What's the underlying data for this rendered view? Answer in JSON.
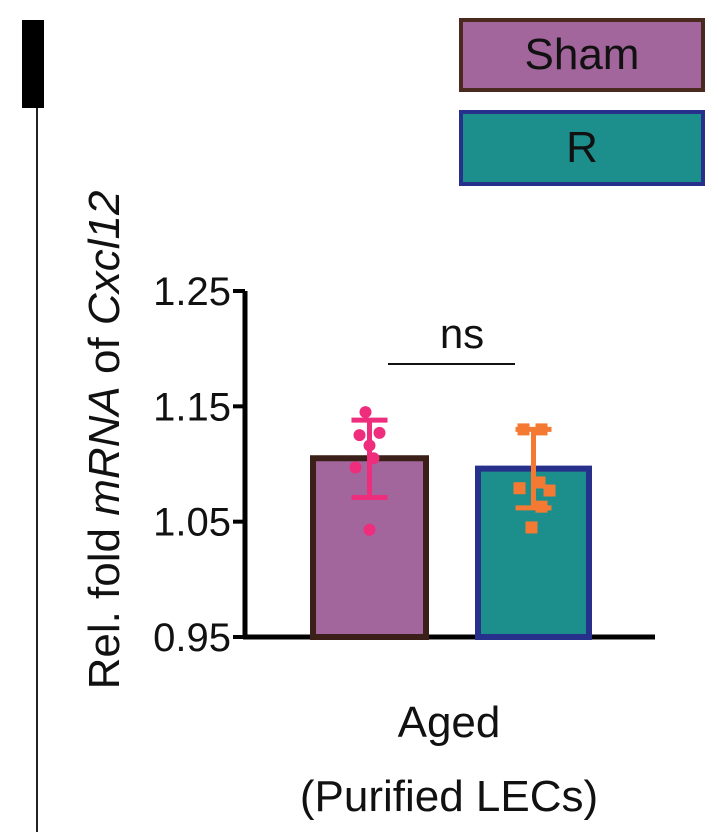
{
  "panel_label": "",
  "legend": [
    {
      "label": "Sham",
      "fill": "#a2659c",
      "border": "#4a2a1e"
    },
    {
      "label": "R",
      "fill": "#1c8f8c",
      "border": "#27308a"
    }
  ],
  "chart_data": {
    "type": "bar",
    "ylabel_prefix": "Rel. fold ",
    "ylabel_italic_1": "mRNA",
    "ylabel_mid": " of ",
    "ylabel_italic_2": "Cxcl12",
    "category_line1": "Aged",
    "category_line2": "(Purified LECs)",
    "ylim": [
      0.95,
      1.25
    ],
    "yticks": [
      "0.95",
      "1.05",
      "1.15",
      "1.25"
    ],
    "grid": false,
    "significance": "ns",
    "series": [
      {
        "name": "Sham",
        "value": 1.105,
        "err_upper": 1.138,
        "err_lower": 1.071,
        "points": [
          1.145,
          1.127,
          1.125,
          1.116,
          1.105,
          1.097,
          1.043
        ],
        "fill": "#a2659c",
        "border": "#3a2018",
        "marker_color": "#ee2d7d",
        "marker": "circle"
      },
      {
        "name": "R",
        "value": 1.096,
        "err_upper": 1.13,
        "err_lower": 1.062,
        "points": [
          1.13,
          1.13,
          1.084,
          1.079,
          1.077,
          1.063,
          1.045
        ],
        "fill": "#1c8f8c",
        "border": "#27308a",
        "marker_color": "#f47a33",
        "marker": "square"
      }
    ]
  }
}
